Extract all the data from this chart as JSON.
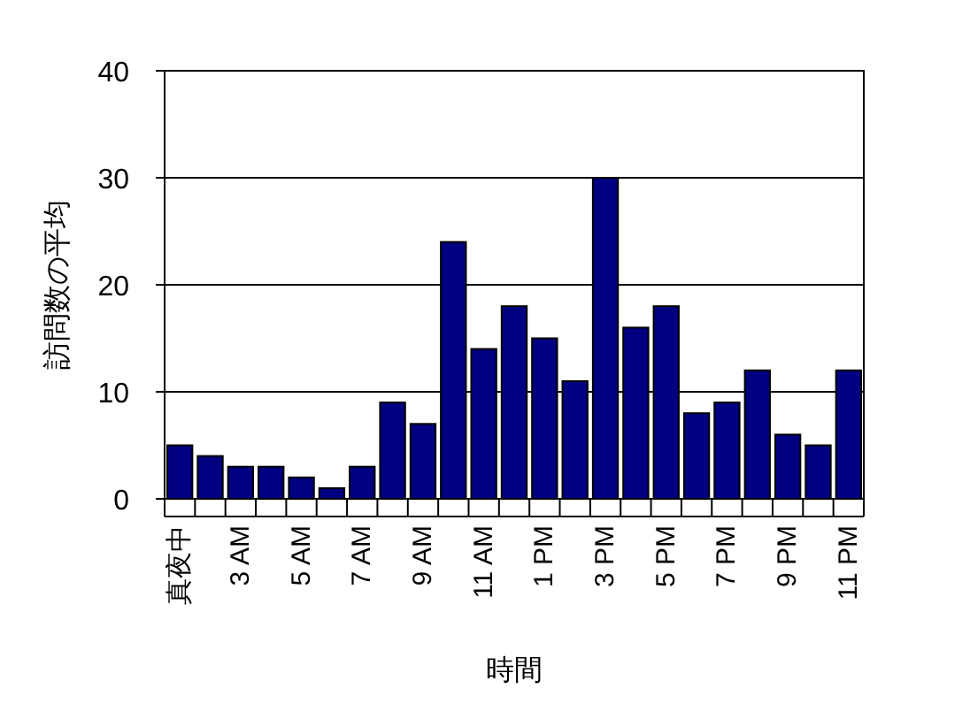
{
  "chart_data": {
    "type": "bar",
    "xlabel": "時間",
    "ylabel": "訪問数の平均",
    "categories": [
      "真夜中",
      null,
      "3 AM",
      null,
      "5 AM",
      null,
      "7 AM",
      null,
      "9 AM",
      null,
      "11 AM",
      null,
      "1 PM",
      null,
      "3 PM",
      null,
      "5 PM",
      null,
      "7 PM",
      null,
      "9 PM",
      null,
      "11 PM"
    ],
    "values": [
      5,
      4,
      3,
      3,
      2,
      1,
      3,
      9,
      7,
      24,
      14,
      18,
      15,
      11,
      30,
      16,
      18,
      8,
      9,
      12,
      6,
      5,
      12
    ],
    "color": "#000080",
    "ylim": [
      0,
      40
    ],
    "yticks": [
      0,
      10,
      20,
      30,
      40
    ],
    "grid": "y"
  }
}
